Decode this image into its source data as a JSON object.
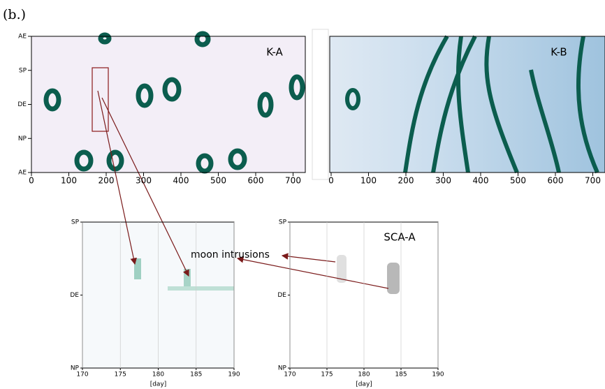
{
  "figure_label": "(b.)",
  "panels": [
    {
      "label": "K-A",
      "y_ticks": [
        "AE",
        "SP",
        "DE",
        "NP",
        "AE"
      ],
      "x_ticks": [
        0,
        100,
        200,
        300,
        400,
        500,
        600,
        700
      ]
    },
    {
      "label": "K-B",
      "x_ticks": [
        0,
        100,
        200,
        300,
        400,
        500,
        600,
        700
      ]
    },
    {
      "y_ticks": [
        "SP",
        "DE",
        "NP"
      ],
      "x_ticks": [
        170,
        175,
        180,
        185,
        190
      ],
      "x_label": "[day]"
    },
    {
      "label": "SCA-A",
      "y_ticks": [
        "SP",
        "DE",
        "NP"
      ],
      "x_ticks": [
        170,
        175,
        180,
        185,
        190
      ],
      "x_label": "[day]"
    }
  ],
  "annotation": "moon intrusions"
}
